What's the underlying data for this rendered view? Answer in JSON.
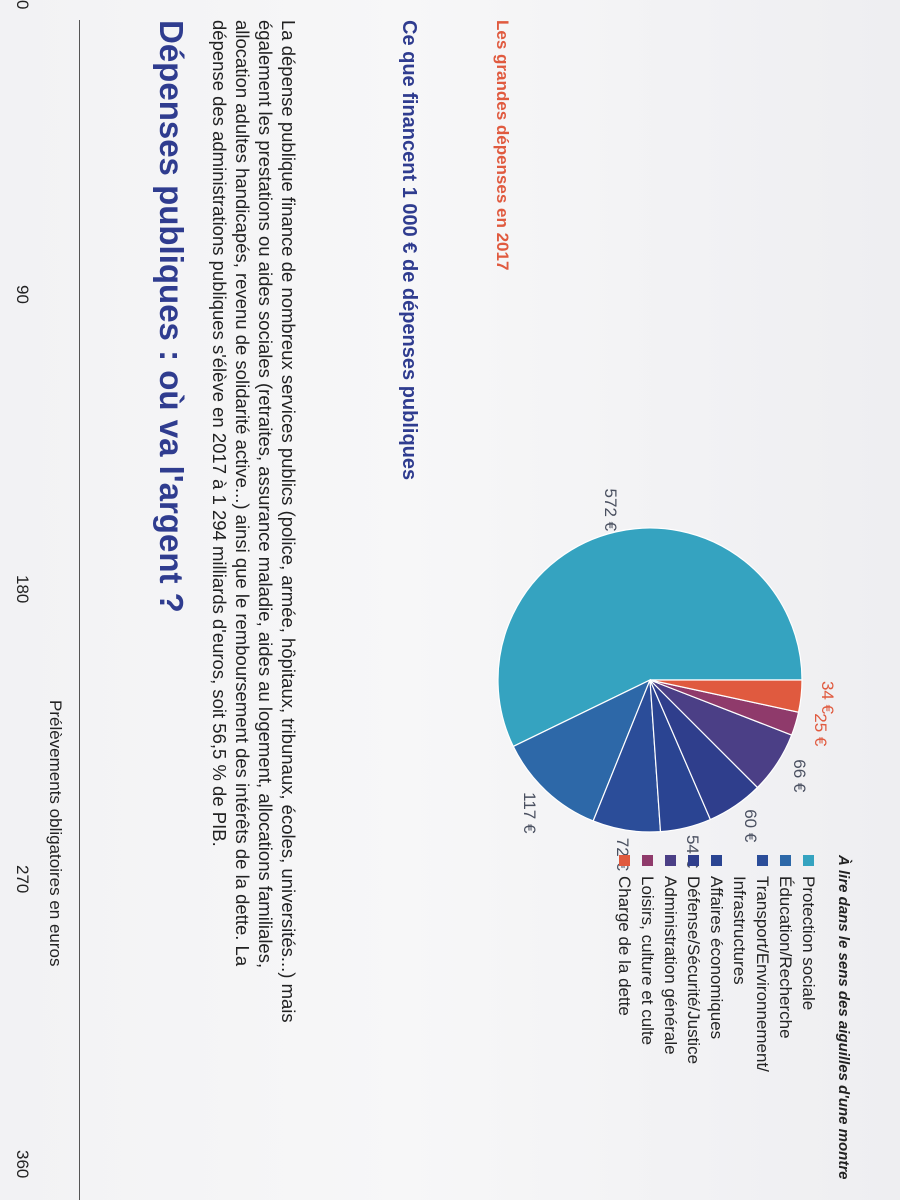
{
  "top_axis": {
    "ticks": [
      "0",
      "90",
      "180",
      "270",
      "360"
    ],
    "caption": "Prélèvements obligatoires en euros"
  },
  "title": "Dépenses publiques : où va l'argent ?",
  "paragraph": "La dépense publique finance de nombreux services publics (police, armée, hôpitaux, tribunaux, écoles, universités...) mais également les prestations ou aides sociales (retraites, assurance maladie, aides au logement, allocations familiales, allocation adultes handicapés, revenu de solidarité active...) ainsi que le remboursement des intérêts de la dette. La dépense des administrations publiques s'élève en 2017 à 1 294 milliards d'euros, soit 56,5 % de PIB.",
  "subtitle": "Ce que financent 1 000 € de dépenses publiques",
  "chart_subtitle": "Les grandes dépenses en 2017",
  "note": "À lire dans le sens des aiguilles d'une montre",
  "chart_data": {
    "type": "pie",
    "title": "Les grandes dépenses en 2017",
    "categories": [
      "Protection sociale",
      "Éducation/Recherche",
      "Transport/Environnement/ Infrastructures",
      "Affaires économiques",
      "Défense/Sécurité/Justice",
      "Administration générale",
      "Loisirs, culture et culte",
      "Charge de la dette"
    ],
    "values": [
      572,
      117,
      72,
      54,
      60,
      66,
      25,
      34
    ],
    "value_labels": [
      "572 €",
      "117 €",
      "72 €",
      "54 €",
      "60 €",
      "66 €",
      "25 €",
      "34 €"
    ],
    "colors": [
      "#35a3c0",
      "#2d68a8",
      "#2b4d99",
      "#2a4492",
      "#2f3e8c",
      "#4b3f86",
      "#8f3a6b",
      "#e05a3f"
    ],
    "legend_position": "right"
  }
}
